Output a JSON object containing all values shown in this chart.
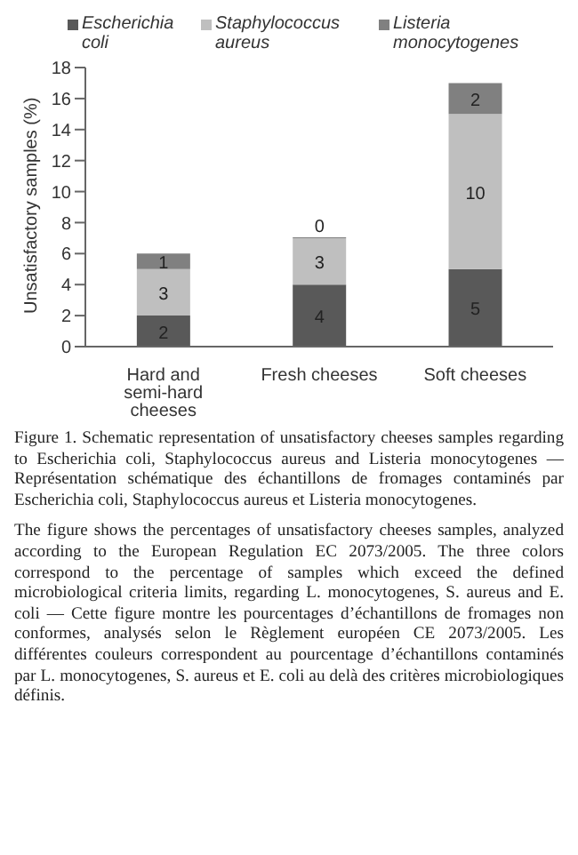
{
  "chart_data": {
    "type": "bar",
    "stacked": true,
    "categories": [
      "Hard and semi-hard cheeses",
      "Fresh cheeses",
      "Soft cheeses"
    ],
    "series": [
      {
        "name": "Escherichia coli",
        "color": "#595959",
        "values": [
          2,
          4,
          5
        ]
      },
      {
        "name": "Staphylococcus aureus",
        "color": "#bfbfbf",
        "values": [
          3,
          3,
          10
        ]
      },
      {
        "name": "Listeria monocytogenes",
        "color": "#808080",
        "values": [
          1,
          0,
          2
        ]
      }
    ],
    "ylabel": "Unsatisfactory samples (%)",
    "ylim": [
      0,
      18
    ],
    "yticks": [
      0,
      2,
      4,
      6,
      8,
      10,
      12,
      14,
      16,
      18
    ],
    "data_labels": true,
    "legend": "top",
    "grid": false,
    "annotations": [
      "Figure 1. Schematic representation of unsatisfactory cheeses samples regarding to Escherichia coli, Staphylococcus aureus and Listeria monocytogenes — Représentation schématique des échantillons de fromages contaminés par Escherichia coli, Staphylococcus aureus et Listeria monocytogenes.",
      "The figure shows the percentages of unsatisfactory cheeses samples, analyzed according to the European Regulation EC 2073/2005. The three colors correspond to the percentage of samples which exceed the defined microbiological criteria limits, regarding L. monocytogenes, S. aureus and E. coli — Cette figure montre les pourcentages d’échantillons de fromages non conformes, analysés selon le Règlement européen CE 2073/2005. Les différentes couleurs correspondent au pourcentage d’échantillons contaminés par L. monocytogenes, S. aureus et E. coli au delà des critères microbiologiques définis."
    ]
  }
}
